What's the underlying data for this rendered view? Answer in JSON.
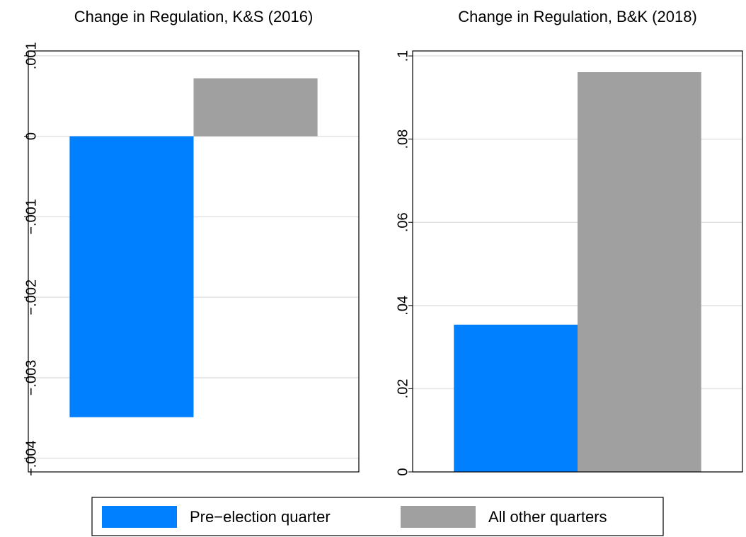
{
  "chart_data": [
    {
      "type": "bar",
      "title": "Change in Regulation, K&S (2016)",
      "categories": [
        null
      ],
      "series": [
        {
          "name": "Pre−election quarter",
          "color": "#0080ff",
          "values": [
            -0.00349
          ]
        },
        {
          "name": "All other quarters",
          "color": "#a0a0a0",
          "values": [
            0.00072
          ]
        }
      ],
      "ylim": [
        -0.00417,
        0.00106
      ],
      "yticks": [
        {
          "value": -0.004,
          "label": "−.004"
        },
        {
          "value": -0.003,
          "label": "−.003"
        },
        {
          "value": -0.002,
          "label": "−.002"
        },
        {
          "value": -0.001,
          "label": "−.001"
        },
        0,
        {
          "value": 0.001,
          "label": ".001"
        }
      ],
      "grid": true
    },
    {
      "type": "bar",
      "title": "Change in Regulation, B&K (2018)",
      "categories": [
        null
      ],
      "series": [
        {
          "name": "Pre−election quarter",
          "color": "#0080ff",
          "values": [
            0.0354
          ]
        },
        {
          "name": "All other quarters",
          "color": "#a0a0a0",
          "values": [
            0.0961
          ]
        }
      ],
      "ylim": [
        0,
        0.1012
      ],
      "yticks": [
        0,
        {
          "value": 0.02,
          "label": ".02"
        },
        {
          "value": 0.04,
          "label": ".04"
        },
        {
          "value": 0.06,
          "label": ".06"
        },
        {
          "value": 0.08,
          "label": ".08"
        },
        {
          "value": 0.1,
          "label": ".1"
        }
      ],
      "grid": true
    }
  ]
}
